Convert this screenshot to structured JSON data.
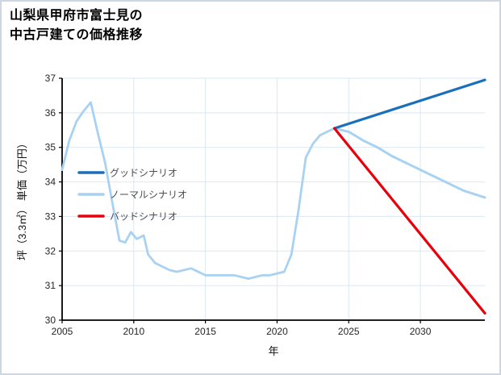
{
  "page": {
    "background": "#ffffff",
    "border_color": "#cdd7e2"
  },
  "chart_data": {
    "type": "line",
    "title_lines": [
      "山梨県甲府市富士見の",
      "中古戸建ての価格推移"
    ],
    "xlabel": "年",
    "ylabel": "坪（3.3㎡） 単価（万円）",
    "xlim": [
      2005,
      2034.5
    ],
    "ylim": [
      30,
      37
    ],
    "xticks": [
      2005,
      2010,
      2015,
      2020,
      2025,
      2030
    ],
    "yticks": [
      30,
      31,
      32,
      33,
      34,
      35,
      36,
      37
    ],
    "grid": true,
    "legend_position": "inside-left",
    "colors": {
      "good": "#1a6fba",
      "normal": "#a9d2f2",
      "bad": "#e8000b",
      "grid": "#d9e7f5",
      "axis": "#000000"
    },
    "series": [
      {
        "id": "normal-history",
        "color": "#a9d2f2",
        "width": 2.8,
        "x": [
          2005,
          2005.5,
          2006,
          2006.5,
          2007,
          2007.5,
          2008,
          2008.5,
          2009,
          2009.4,
          2009.8,
          2010.2,
          2010.7,
          2011,
          2011.5,
          2012,
          2012.5,
          2013,
          2013.5,
          2014,
          2014.5,
          2015,
          2015.5,
          2016,
          2016.5,
          2017,
          2017.5,
          2018,
          2018.5,
          2019,
          2019.5,
          2020,
          2020.5,
          2021,
          2021.5,
          2022,
          2022.5,
          2023,
          2023.5,
          2024
        ],
        "y": [
          34.35,
          35.2,
          35.75,
          36.05,
          36.3,
          35.4,
          34.55,
          33.4,
          32.3,
          32.25,
          32.55,
          32.35,
          32.45,
          31.9,
          31.65,
          31.55,
          31.45,
          31.4,
          31.45,
          31.5,
          31.4,
          31.3,
          31.3,
          31.3,
          31.3,
          31.3,
          31.25,
          31.2,
          31.25,
          31.3,
          31.3,
          31.35,
          31.4,
          31.9,
          33.2,
          34.7,
          35.1,
          35.35,
          35.45,
          35.55
        ]
      },
      {
        "id": "normal-forecast",
        "color": "#a9d2f2",
        "width": 3,
        "x": [
          2024,
          2025,
          2026,
          2027,
          2028,
          2029,
          2030,
          2031,
          2032,
          2033,
          2034.5
        ],
        "y": [
          35.55,
          35.45,
          35.2,
          35.0,
          34.75,
          34.55,
          34.35,
          34.15,
          33.95,
          33.75,
          33.55
        ]
      },
      {
        "id": "good",
        "color": "#1a6fba",
        "width": 3.2,
        "x": [
          2024,
          2034.5
        ],
        "y": [
          35.55,
          36.95
        ]
      },
      {
        "id": "bad",
        "color": "#e8000b",
        "width": 3.2,
        "x": [
          2024,
          2034.5
        ],
        "y": [
          35.55,
          30.2
        ]
      }
    ],
    "legend": [
      {
        "id": "good",
        "label": "グッドシナリオ",
        "color": "#1a6fba"
      },
      {
        "id": "normal",
        "label": "ノーマルシナリオ",
        "color": "#a9d2f2"
      },
      {
        "id": "bad",
        "label": "バッドシナリオ",
        "color": "#e8000b"
      }
    ]
  }
}
